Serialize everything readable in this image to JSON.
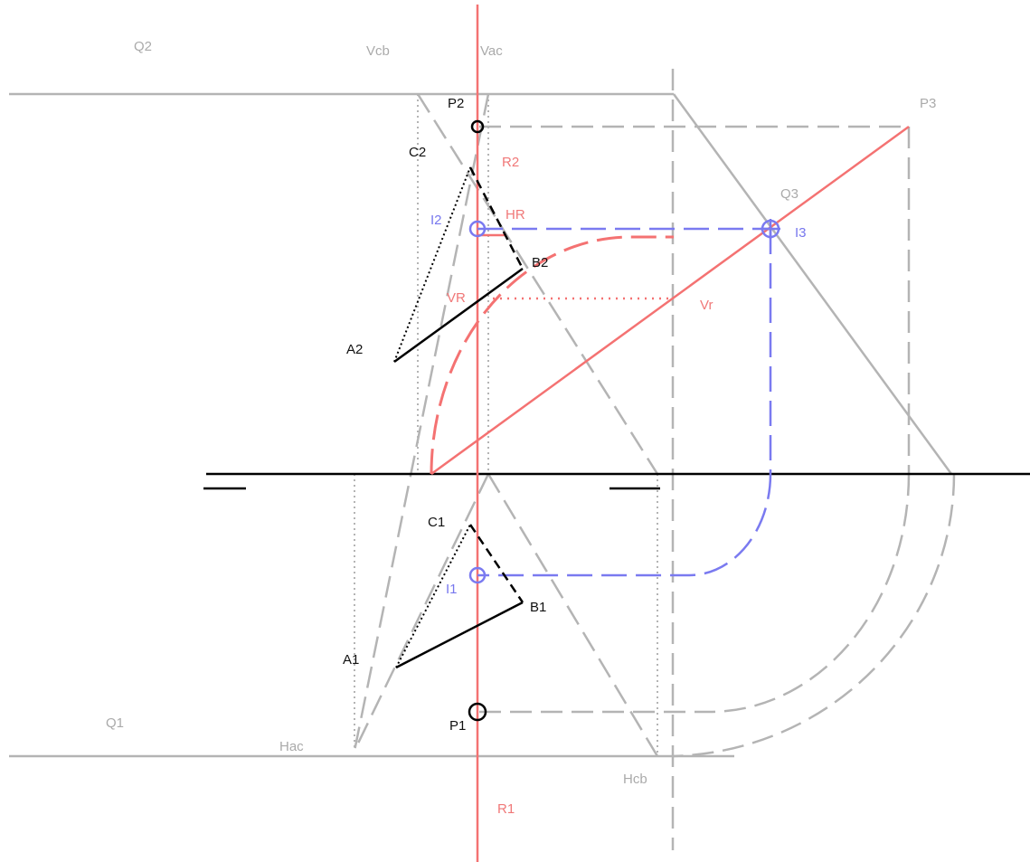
{
  "colors": {
    "construction": "#b4b4b4",
    "projection": "#f47272",
    "intersection": "#7a7af0",
    "object": "#000000"
  },
  "labels": {
    "q2": "Q2",
    "vcb": "Vcb",
    "vac": "Vac",
    "p2": "P2",
    "p3": "P3",
    "c2": "C2",
    "r2": "R2",
    "q3": "Q3",
    "i2": "I2",
    "hr": "HR",
    "i3": "I3",
    "b2": "B2",
    "vr_upper": "VR",
    "vr_lower": "Vr",
    "a2": "A2",
    "c1": "C1",
    "i1": "I1",
    "b1": "B1",
    "a1": "A1",
    "q1": "Q1",
    "p1": "P1",
    "hac": "Hac",
    "hcb": "Hcb",
    "r1": "R1"
  }
}
